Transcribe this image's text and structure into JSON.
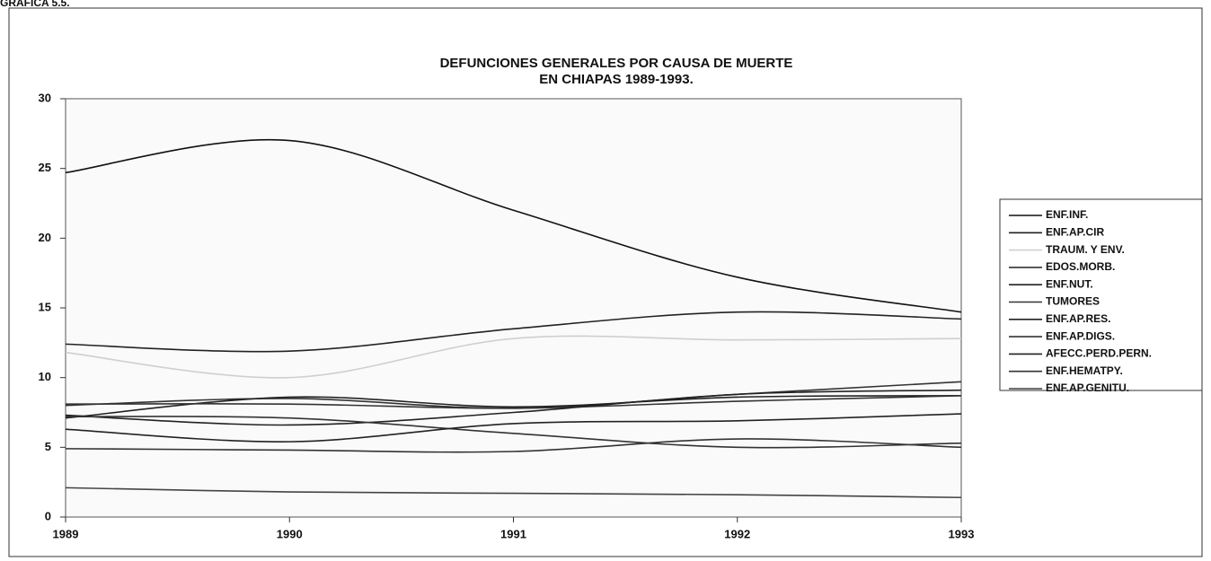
{
  "caption": "GRAFICA 5.5.",
  "chart_data": {
    "type": "line",
    "title": "DEFUNCIONES GENERALES POR CAUSA DE MUERTE",
    "subtitle": "EN CHIAPAS 1989-1993.",
    "x": [
      1989,
      1990,
      1991,
      1992,
      1993
    ],
    "xlim": [
      1989,
      1993
    ],
    "xticks": [
      1989,
      1990,
      1991,
      1992,
      1993
    ],
    "ylim": [
      0,
      30
    ],
    "yticks": [
      0,
      5,
      10,
      15,
      20,
      25,
      30
    ],
    "legend": "right",
    "series": [
      {
        "name": "ENF.INF.",
        "color": "#111111",
        "values": [
          24.7,
          27,
          22,
          17.2,
          14.7
        ]
      },
      {
        "name": "ENF.AP.CIR",
        "color": "#222222",
        "values": [
          12.4,
          11.9,
          13.5,
          14.7,
          14.2
        ]
      },
      {
        "name": "TRAUM. Y ENV.",
        "color": "#cfcfcf",
        "values": [
          11.8,
          10,
          12.8,
          12.7,
          12.8
        ]
      },
      {
        "name": "EDOS.MORB.",
        "color": "#333333",
        "values": [
          8,
          8.5,
          7.8,
          8.8,
          9.7
        ]
      },
      {
        "name": "ENF.NUT.",
        "color": "#222222",
        "values": [
          7.1,
          8.6,
          7.9,
          8.6,
          8.7
        ]
      },
      {
        "name": "TUMORES",
        "color": "#333333",
        "values": [
          8.1,
          8.1,
          7.8,
          8.3,
          8.7
        ]
      },
      {
        "name": "ENF.AP.RES.",
        "color": "#222222",
        "values": [
          7.3,
          6.6,
          7.5,
          8.8,
          9.1
        ]
      },
      {
        "name": "ENF.AP.DIGS.",
        "color": "#333333",
        "values": [
          7.2,
          7.1,
          6,
          5,
          5.3
        ]
      },
      {
        "name": "AFECC.PERD.PERN.",
        "color": "#222222",
        "values": [
          6.3,
          5.4,
          6.7,
          6.9,
          7.4
        ]
      },
      {
        "name": "ENF.HEMATPY.",
        "color": "#333333",
        "values": [
          4.9,
          4.8,
          4.7,
          5.6,
          5
        ]
      },
      {
        "name": "ENF.AP.GENITU.",
        "color": "#444444",
        "values": [
          2.1,
          1.8,
          1.7,
          1.6,
          1.4
        ]
      }
    ]
  }
}
